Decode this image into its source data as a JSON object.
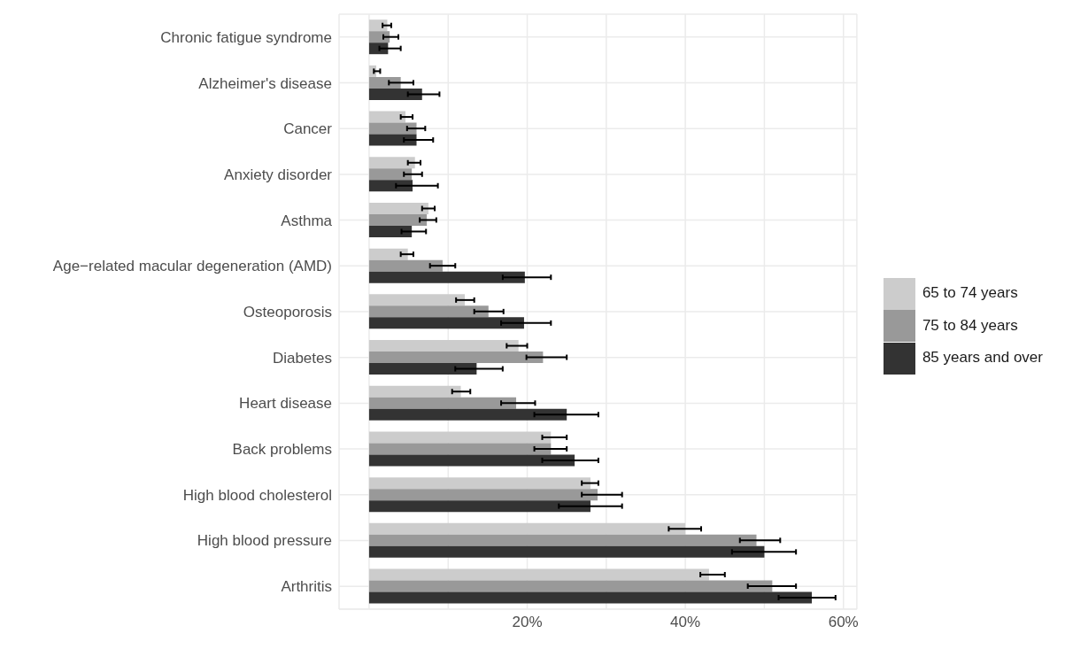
{
  "chart_data": {
    "type": "bar",
    "orientation": "horizontal",
    "categories": [
      "Chronic fatigue syndrome",
      "Alzheimer's disease",
      "Cancer",
      "Anxiety disorder",
      "Asthma",
      "Age−related macular degeneration (AMD)",
      "Osteoporosis",
      "Diabetes",
      "Heart disease",
      "Back problems",
      "High blood cholesterol",
      "High blood pressure",
      "Arthritis"
    ],
    "series": [
      {
        "name": "65 to 74 years",
        "color": "#cccccc",
        "values": [
          2.3,
          0.9,
          4.6,
          5.8,
          7.5,
          4.9,
          12.1,
          18.9,
          11.6,
          23,
          28,
          40,
          43
        ],
        "errors": [
          [
            1.7,
            2.8
          ],
          [
            0.6,
            1.4
          ],
          [
            4.0,
            5.5
          ],
          [
            4.9,
            6.5
          ],
          [
            6.7,
            8.3
          ],
          [
            4.0,
            5.6
          ],
          [
            11.0,
            13.3
          ],
          [
            17.4,
            20
          ],
          [
            10.5,
            12.8
          ],
          [
            21.9,
            25
          ],
          [
            26.9,
            29
          ],
          [
            37.9,
            42
          ],
          [
            41.9,
            45
          ]
        ]
      },
      {
        "name": "75 to 84 years",
        "color": "#999999",
        "values": [
          2.6,
          4.0,
          6.0,
          5.4,
          7.3,
          9.3,
          15.1,
          22,
          18.6,
          23,
          28.9,
          49,
          51
        ],
        "errors": [
          [
            1.8,
            3.7
          ],
          [
            2.5,
            5.6
          ],
          [
            4.8,
            7.1
          ],
          [
            4.4,
            6.7
          ],
          [
            6.4,
            8.5
          ],
          [
            7.7,
            10.9
          ],
          [
            13.3,
            17
          ],
          [
            19.9,
            25
          ],
          [
            16.7,
            21
          ],
          [
            20.9,
            25
          ],
          [
            26.9,
            32
          ],
          [
            46.9,
            52
          ],
          [
            47.9,
            54
          ]
        ]
      },
      {
        "name": "85 years and over",
        "color": "#333333",
        "values": [
          2.4,
          6.7,
          6.0,
          5.5,
          5.4,
          19.7,
          19.6,
          13.6,
          25,
          26,
          28,
          50,
          56
        ],
        "errors": [
          [
            1.3,
            4.0
          ],
          [
            4.9,
            8.9
          ],
          [
            4.4,
            8.1
          ],
          [
            3.4,
            8.7
          ],
          [
            4.1,
            7.2
          ],
          [
            16.9,
            23
          ],
          [
            16.7,
            23
          ],
          [
            10.9,
            16.9
          ],
          [
            20.9,
            29
          ],
          [
            21.9,
            29
          ],
          [
            24,
            32
          ],
          [
            45.9,
            54
          ],
          [
            51.8,
            59
          ]
        ]
      }
    ],
    "xlim": [
      -3.8,
      61.7
    ],
    "xticks": [
      {
        "value": 0,
        "label": null
      },
      {
        "value": 10,
        "label": null
      },
      {
        "value": 20,
        "label": "20%"
      },
      {
        "value": 30,
        "label": null
      },
      {
        "value": 40,
        "label": "40%"
      },
      {
        "value": 50,
        "label": null
      },
      {
        "value": 60,
        "label": "60%"
      }
    ],
    "grid": true,
    "legend": "right"
  }
}
